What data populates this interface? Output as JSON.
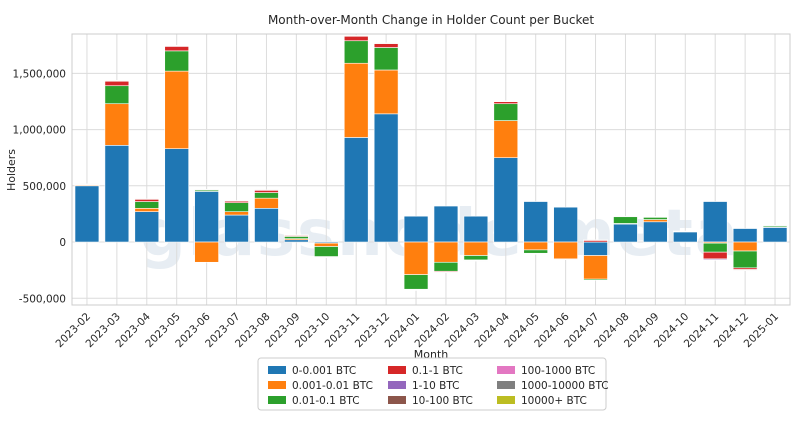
{
  "chart_data": {
    "type": "bar",
    "stacked": true,
    "title": "Month-over-Month Change in Holder Count per Bucket",
    "xlabel": "Month",
    "ylabel": "Holders",
    "ylim": [
      -560000,
      1850000
    ],
    "yticks": [
      -500000,
      0,
      500000,
      1000000,
      1500000
    ],
    "ytick_labels": [
      "-500,000",
      "0",
      "500,000",
      "1,000,000",
      "1,500,000"
    ],
    "grid": true,
    "legend_position": "bottom",
    "watermark": "glassnode meta",
    "categories": [
      "2023-02",
      "2023-03",
      "2023-04",
      "2023-05",
      "2023-06",
      "2023-07",
      "2023-08",
      "2023-09",
      "2023-10",
      "2023-11",
      "2023-12",
      "2024-01",
      "2024-02",
      "2024-03",
      "2024-04",
      "2024-05",
      "2024-06",
      "2024-07",
      "2024-08",
      "2024-09",
      "2024-10",
      "2024-11",
      "2024-12",
      "2025-01"
    ],
    "series": [
      {
        "name": "0-0.001 BTC",
        "color": "#1f77b4",
        "values": [
          500000,
          860000,
          270000,
          830000,
          450000,
          240000,
          300000,
          20000,
          -10000,
          930000,
          1140000,
          230000,
          320000,
          230000,
          750000,
          360000,
          310000,
          -120000,
          160000,
          180000,
          90000,
          360000,
          120000,
          130000
        ]
      },
      {
        "name": "0.001-0.01 BTC",
        "color": "#ff7f0e",
        "values": [
          8000,
          370000,
          30000,
          690000,
          -180000,
          30000,
          90000,
          10000,
          -30000,
          660000,
          390000,
          -290000,
          -180000,
          -120000,
          330000,
          -70000,
          -150000,
          -210000,
          5000,
          20000,
          3000,
          -10000,
          -80000,
          5000
        ]
      },
      {
        "name": "0.01-0.1 BTC",
        "color": "#2ca02c",
        "values": [
          4000,
          160000,
          60000,
          180000,
          12000,
          80000,
          50000,
          20000,
          -90000,
          200000,
          200000,
          -130000,
          -80000,
          -40000,
          150000,
          -30000,
          0,
          -10000,
          60000,
          20000,
          2000,
          -80000,
          -150000,
          10000
        ]
      },
      {
        "name": "0.1-1 BTC",
        "color": "#d62728",
        "values": [
          4000,
          40000,
          20000,
          40000,
          5000,
          15000,
          20000,
          10000,
          -4000,
          40000,
          35000,
          -5000,
          -8000,
          -5000,
          18000,
          -5000,
          -3000,
          15000,
          3000,
          5000,
          1000,
          -60000,
          -15000,
          3000
        ]
      },
      {
        "name": "1-10 BTC",
        "color": "#9467bd",
        "values": [
          1000,
          6000,
          3000,
          6000,
          1500,
          2000,
          3000,
          2000,
          -1000,
          6000,
          5000,
          -1500,
          -2000,
          -1000,
          4000,
          -1000,
          -1000,
          3000,
          1000,
          1000,
          300,
          -8000,
          -3000,
          500
        ]
      },
      {
        "name": "10-100 BTC",
        "color": "#8c564b",
        "values": [
          300,
          1000,
          800,
          1200,
          400,
          500,
          600,
          300,
          -200,
          1000,
          800,
          -300,
          -300,
          -200,
          600,
          -200,
          -200,
          600,
          200,
          300,
          100,
          -1500,
          -4000,
          100
        ]
      },
      {
        "name": "100-1000 BTC",
        "color": "#e377c2",
        "values": [
          50,
          120,
          80,
          150,
          50,
          60,
          70,
          40,
          -20,
          120,
          100,
          -40,
          -40,
          -30,
          80,
          -30,
          -30,
          80,
          20,
          40,
          10,
          -200,
          -300,
          20
        ]
      },
      {
        "name": "1000-10000 BTC",
        "color": "#7f7f7f",
        "values": [
          5,
          10,
          8,
          12,
          5,
          6,
          7,
          4,
          -2,
          10,
          9,
          -4,
          -4,
          -3,
          8,
          -3,
          -3,
          6,
          2,
          3,
          1,
          -15,
          -20,
          2
        ]
      },
      {
        "name": "10000+ BTC",
        "color": "#bcbd22",
        "values": [
          0,
          1,
          0,
          1,
          0,
          0,
          0,
          0,
          0,
          1,
          1,
          0,
          0,
          0,
          1,
          0,
          0,
          0,
          0,
          0,
          0,
          0,
          0,
          0
        ]
      }
    ]
  }
}
